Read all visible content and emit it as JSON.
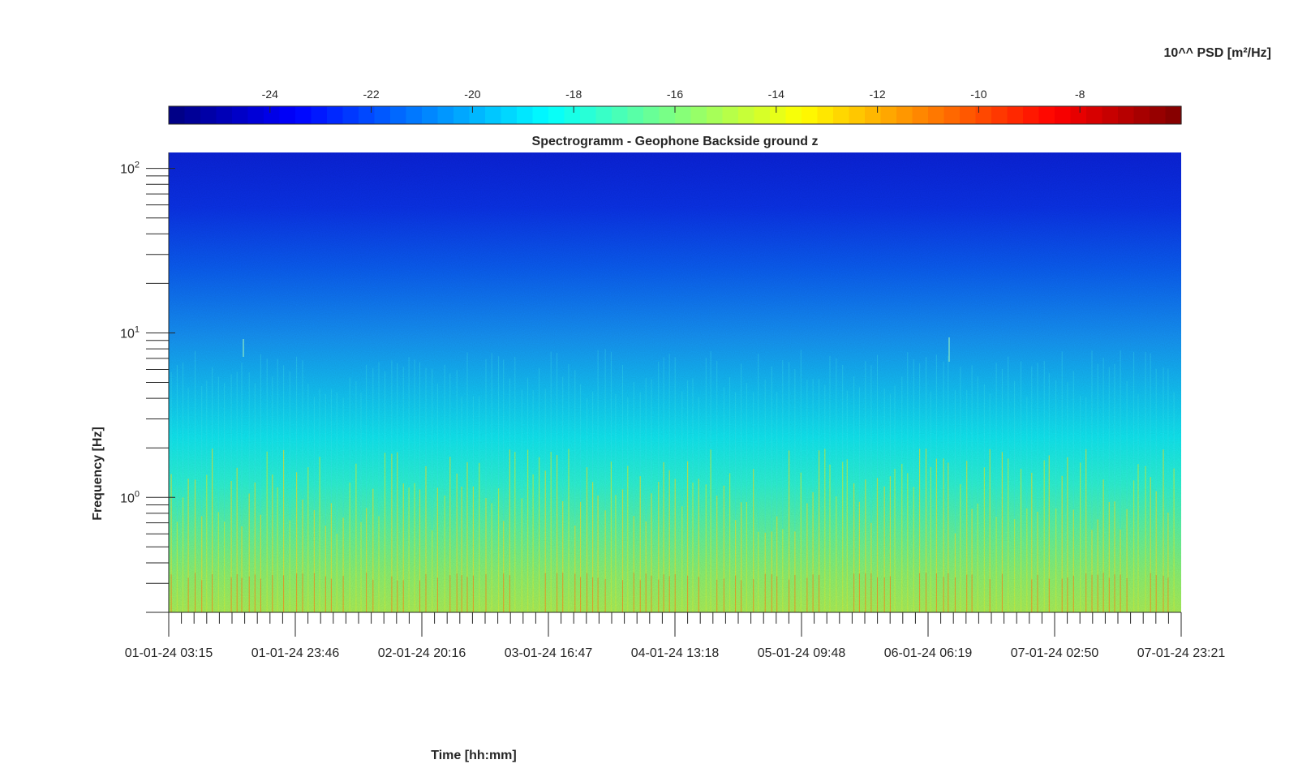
{
  "chart_data": {
    "type": "heatmap",
    "title": "Spectrogramm - Geophone Backside ground z",
    "xlabel": "Time [hh:mm]",
    "ylabel": "Frequency [Hz]",
    "colorbar_label": "10^^ PSD [m²/Hz]",
    "colorbar_position": "top",
    "colormap": "jet",
    "yscale": "log",
    "ylim": [
      0.2,
      125
    ],
    "clim": [
      -26,
      -6
    ],
    "x_ticks": [
      "01-01-24 03:15",
      "01-01-24 23:46",
      "02-01-24 20:16",
      "03-01-24 16:47",
      "04-01-24 13:18",
      "05-01-24 09:48",
      "06-01-24 06:19",
      "07-01-24 02:50",
      "07-01-24 23:21"
    ],
    "y_ticks": [
      {
        "base": "10",
        "exp": "0",
        "value": 1
      },
      {
        "base": "10",
        "exp": "1",
        "value": 10
      },
      {
        "base": "10",
        "exp": "2",
        "value": 100
      }
    ],
    "colorbar_ticks": [
      {
        "label": "-24",
        "value": -24
      },
      {
        "label": "-22",
        "value": -22
      },
      {
        "label": "-20",
        "value": -20
      },
      {
        "label": "-18",
        "value": -18
      },
      {
        "label": "-16",
        "value": -16
      },
      {
        "label": "-14",
        "value": -14
      },
      {
        "label": "-12",
        "value": -12
      },
      {
        "label": "-10",
        "value": -10
      },
      {
        "label": "-8",
        "value": -8
      }
    ],
    "psd_profile": [
      {
        "freq_hz": 100,
        "log10_psd": -23.6
      },
      {
        "freq_hz": 30,
        "log10_psd": -22.3
      },
      {
        "freq_hz": 10,
        "log10_psd": -20.8
      },
      {
        "freq_hz": 3,
        "log10_psd": -19.0
      },
      {
        "freq_hz": 1,
        "log10_psd": -17.8
      },
      {
        "freq_hz": 0.5,
        "log10_psd": -16.5
      },
      {
        "freq_hz": 0.25,
        "log10_psd": -15.4
      }
    ]
  }
}
